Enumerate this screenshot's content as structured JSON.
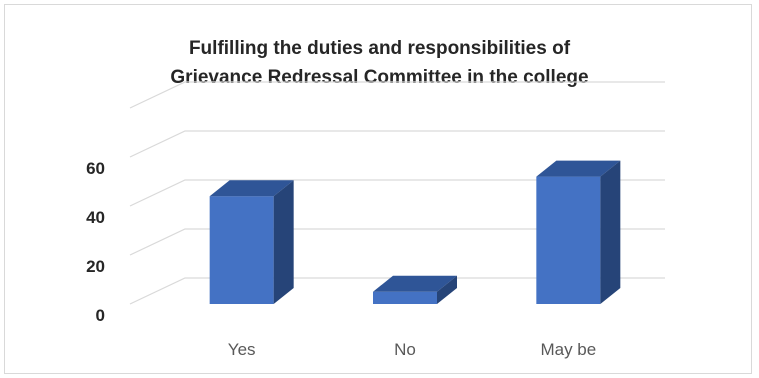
{
  "chart_data": {
    "type": "bar",
    "title_lines": [
      "Fulfilling the duties and responsibilities of",
      "Grievance Redressal Committee in the college"
    ],
    "categories": [
      "Yes",
      "No",
      "May be"
    ],
    "values": [
      44,
      5,
      52
    ],
    "yticks": [
      "0",
      "20",
      "40",
      "60"
    ],
    "ylim": [
      0,
      80
    ],
    "grid": true,
    "legend": "none",
    "style": "3d-column"
  },
  "colors": {
    "bar_front": "#4472c4",
    "bar_top": "#2f5597",
    "bar_side": "#264478",
    "gridline": "#d9d9d9"
  }
}
